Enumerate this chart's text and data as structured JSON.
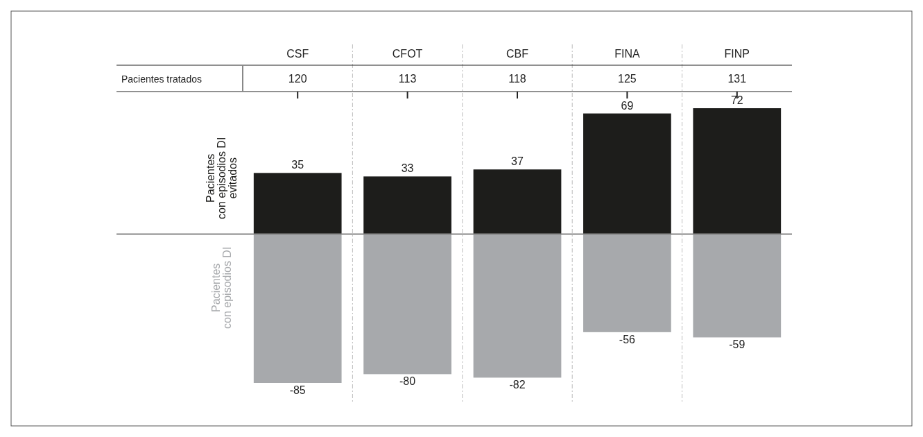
{
  "chart_data": {
    "type": "bar",
    "stacked": true,
    "categories": [
      "CSF",
      "CFOT",
      "CBF",
      "FINA",
      "FINP"
    ],
    "series": [
      {
        "name": "Pacientes\ncon episodios DI\nevitados",
        "color": "#1d1d1b",
        "values": [
          35,
          33,
          37,
          69,
          72
        ]
      },
      {
        "name": "Pacientes\ncon episodios DI",
        "color": "#a7a9ac",
        "values": [
          -85,
          -80,
          -82,
          -56,
          -59
        ]
      }
    ],
    "data_labels": true,
    "tick_labels": "x",
    "legend": false,
    "annotations": [
      "Pacientes tratados",
      {
        "text": "120",
        "x": "CSF"
      },
      {
        "text": "113",
        "x": "CFOT"
      },
      {
        "text": "118",
        "x": "CBF"
      },
      {
        "text": "125",
        "x": "FINA"
      },
      {
        "text": "131",
        "x": "FINP"
      }
    ]
  }
}
